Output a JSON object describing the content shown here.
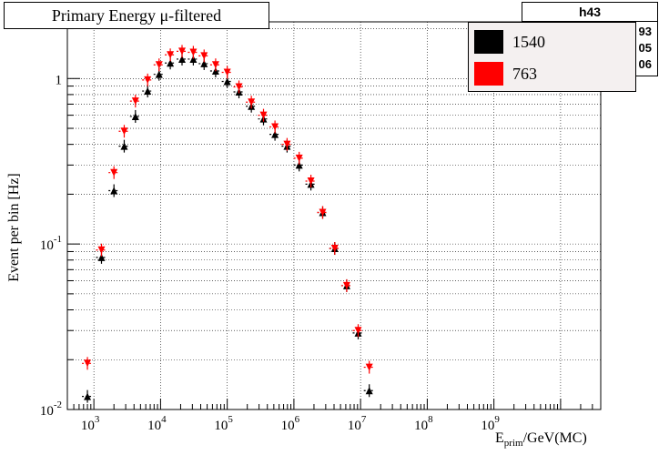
{
  "title": "Primary Energy μ-filtered",
  "stats": {
    "name": "h43",
    "values": [
      "93",
      "05",
      "06"
    ]
  },
  "legend": [
    {
      "label": "1540",
      "color": "#000000"
    },
    {
      "label": "763",
      "color": "#ff0000"
    }
  ],
  "chart_data": {
    "type": "scatter",
    "xlabel_main": "E",
    "xlabel_sub": "prim",
    "xlabel_tail": "/GeV(MC)",
    "ylabel": "Event per bin [Hz]",
    "xscale": "log",
    "yscale": "log",
    "xlim": [
      400,
      40000000000
    ],
    "ylim": [
      0.01,
      2.2
    ],
    "x_ticks": [
      {
        "value": 1000,
        "base": "10",
        "exp": "3"
      },
      {
        "value": 10000,
        "base": "10",
        "exp": "4"
      },
      {
        "value": 100000,
        "base": "10",
        "exp": "5"
      },
      {
        "value": 1000000,
        "base": "10",
        "exp": "6"
      },
      {
        "value": 10000000,
        "base": "10",
        "exp": "7"
      },
      {
        "value": 100000000,
        "base": "10",
        "exp": "8"
      },
      {
        "value": 1000000000,
        "base": "10",
        "exp": "9"
      }
    ],
    "y_ticks": [
      {
        "value": 0.01,
        "base": "10",
        "exp": "-2"
      },
      {
        "value": 0.1,
        "base": "10",
        "exp": "-1"
      },
      {
        "value": 1,
        "base": "1",
        "exp": ""
      }
    ],
    "grid": true,
    "series": [
      {
        "name": "1540",
        "color": "#000000",
        "marker": "triangle-up",
        "x": [
          800,
          1300,
          2000,
          2850,
          4200,
          6400,
          9500,
          14000,
          21000,
          31000,
          45000,
          67000,
          100000,
          150000,
          230000,
          350000,
          520000,
          790000,
          1200000,
          1800000,
          2700000,
          4100000,
          6200000,
          9200000,
          13500000
        ],
        "y": [
          0.012,
          0.083,
          0.21,
          0.39,
          0.59,
          0.84,
          1.06,
          1.24,
          1.31,
          1.31,
          1.23,
          1.11,
          0.96,
          0.83,
          0.68,
          0.57,
          0.46,
          0.39,
          0.3,
          0.23,
          0.155,
          0.094,
          0.056,
          0.029,
          0.013
        ]
      },
      {
        "name": "763",
        "color": "#ff0000",
        "marker": "triangle-down",
        "x": [
          800,
          1300,
          2000,
          2850,
          4200,
          6400,
          9500,
          14000,
          21000,
          31000,
          45000,
          67000,
          100000,
          150000,
          230000,
          350000,
          520000,
          790000,
          1200000,
          1800000,
          2700000,
          4100000,
          6200000,
          9200000,
          13500000
        ],
        "y": [
          0.019,
          0.092,
          0.27,
          0.48,
          0.73,
          0.98,
          1.21,
          1.39,
          1.46,
          1.44,
          1.37,
          1.21,
          1.09,
          0.89,
          0.72,
          0.6,
          0.51,
          0.4,
          0.33,
          0.24,
          0.155,
          0.094,
          0.056,
          0.03,
          0.018
        ]
      }
    ]
  }
}
